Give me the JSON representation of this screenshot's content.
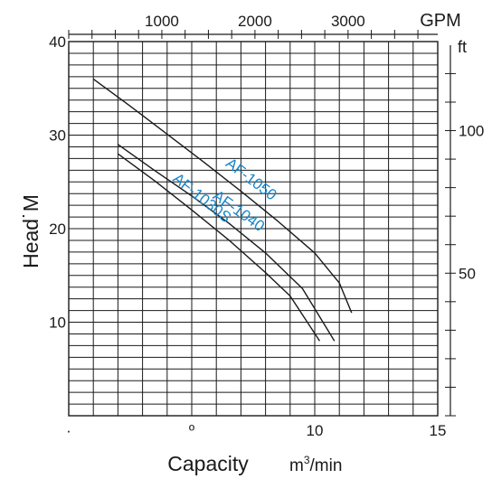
{
  "chart_data": {
    "type": "line",
    "ylabel": "Head˙M",
    "xlabel": "Capacity",
    "xlabel_unit_base": "m",
    "xlabel_unit_sup": "3",
    "xlabel_unit_rest": "/min",
    "x_primary": {
      "unit": "m³/min",
      "range": [
        0,
        15
      ],
      "ticks": [
        {
          "value": 0,
          "label": "·"
        },
        {
          "value": 5,
          "label": "º"
        },
        {
          "value": 10,
          "label": "10"
        },
        {
          "value": 15,
          "label": "15"
        }
      ],
      "minor_step": 1
    },
    "y_primary": {
      "unit": "M",
      "range": [
        0,
        40
      ],
      "ticks": [
        10,
        20,
        30,
        40
      ],
      "minor_step": 1.25
    },
    "x_secondary": {
      "unit": "GPM",
      "label": "GPM",
      "ticks": [
        1000,
        2000,
        3000
      ],
      "minor_step": 250,
      "m3min_per_gpm": 0.003785
    },
    "y_secondary": {
      "unit": "ft",
      "label": "ft",
      "ticks": [
        50,
        100
      ],
      "minor_step": 10,
      "ft_per_m": 3.28084
    },
    "grid": true,
    "series": [
      {
        "name": "AF-1050",
        "x": [
          1.0,
          2.5,
          4.0,
          5.5,
          7.0,
          8.5,
          10.0,
          11.0,
          11.5
        ],
        "y": [
          36.0,
          33.1,
          30.1,
          27.1,
          24.0,
          20.8,
          17.4,
          14.2,
          11.0
        ]
      },
      {
        "name": "AF-1040",
        "x": [
          2.0,
          3.5,
          5.0,
          6.5,
          8.0,
          9.5,
          10.8
        ],
        "y": [
          29.0,
          26.2,
          23.5,
          20.6,
          17.4,
          13.6,
          8.0
        ]
      },
      {
        "name": "AF-1030S",
        "x": [
          2.0,
          3.5,
          5.0,
          6.5,
          8.0,
          9.0,
          10.2
        ],
        "y": [
          28.0,
          25.1,
          22.0,
          18.8,
          15.3,
          12.8,
          8.0
        ]
      }
    ],
    "series_label_color": "#1a86c8",
    "line_color": "#1a1a1a"
  }
}
